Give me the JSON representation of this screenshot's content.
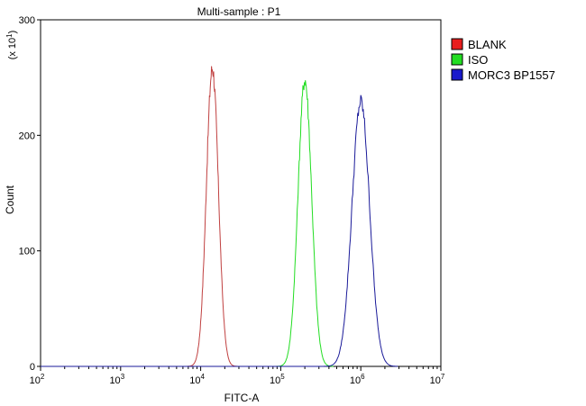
{
  "chart_data": {
    "type": "line",
    "title": "Multi-sample : P1",
    "xlabel": "FITC-A",
    "ylabel": "Count",
    "y_multiplier_label": "(x 10",
    "y_multiplier_exp": "1",
    "y_multiplier_close": ")",
    "x_scale": "log",
    "xlim": [
      100,
      10000000
    ],
    "ylim": [
      0,
      300
    ],
    "grid": false,
    "legend_position": "top-right",
    "x_ticks": [
      {
        "base": "10",
        "exp": "2",
        "value": 100
      },
      {
        "base": "10",
        "exp": "3",
        "value": 1000
      },
      {
        "base": "10",
        "exp": "4",
        "value": 10000
      },
      {
        "base": "10",
        "exp": "5",
        "value": 100000
      },
      {
        "base": "10",
        "exp": "6",
        "value": 1000000
      },
      {
        "base": "10",
        "exp": "7",
        "value": 10000000
      }
    ],
    "y_ticks": [
      "0",
      "100",
      "200",
      "300"
    ],
    "series": [
      {
        "name": "BLANK",
        "color": "#c04040",
        "legend_color": "#e81d1d",
        "peak_x": 14000,
        "peak_y": 258,
        "sigma_log": 0.075
      },
      {
        "name": "ISO",
        "color": "#22dd22",
        "legend_color": "#22dd22",
        "peak_x": 200000,
        "peak_y": 248,
        "sigma_log": 0.085
      },
      {
        "name": "MORC3 BP1557",
        "color": "#1a1a99",
        "legend_color": "#1a1acc",
        "peak_x": 1000000,
        "peak_y": 229,
        "sigma_log": 0.11
      }
    ]
  }
}
